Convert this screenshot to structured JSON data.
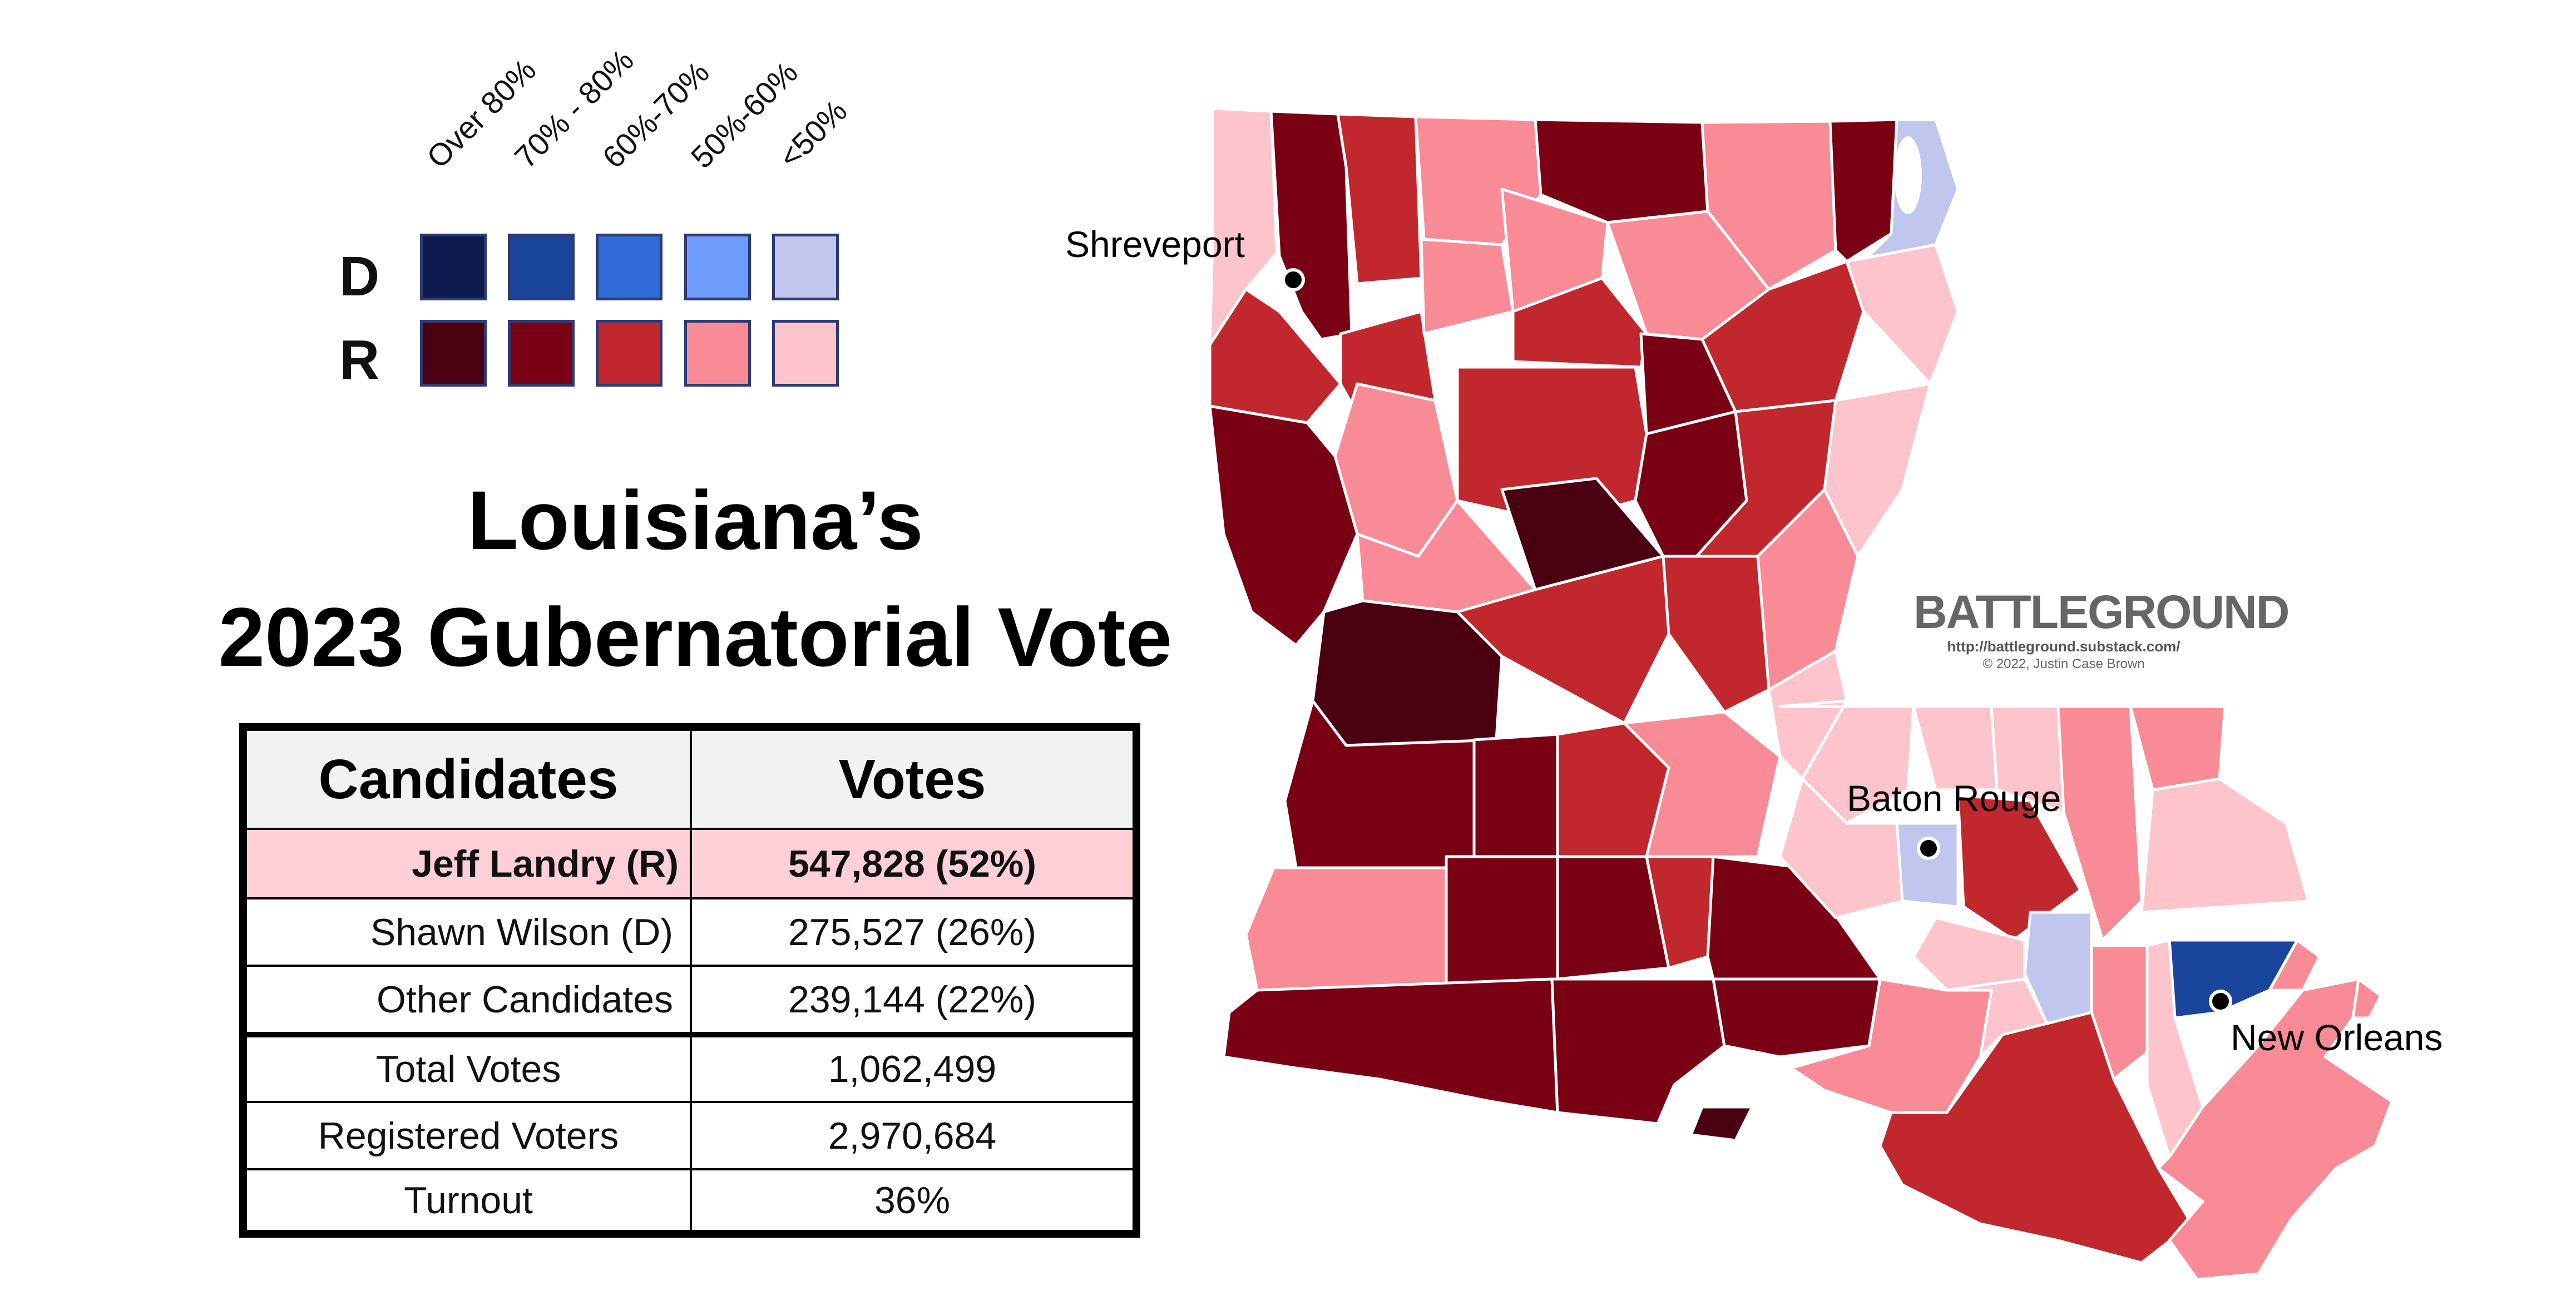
{
  "legend": {
    "headers": [
      "Over 80%",
      "70% - 80%",
      "60%-70%",
      "50%-60%",
      "<50%"
    ],
    "rows": [
      {
        "party": "D",
        "colors": [
          "#0c1a4e",
          "#1a459c",
          "#2f6ad6",
          "#6e9cfc",
          "#c0c6ee"
        ]
      },
      {
        "party": "R",
        "colors": [
          "#4a0010",
          "#7a0014",
          "#c0282e",
          "#f88b96",
          "#fdc4cc"
        ]
      }
    ]
  },
  "title": {
    "line1": "Louisiana’s",
    "line2": "2023 Gubernatorial Vote"
  },
  "results_table": {
    "headers": [
      "Candidates",
      "Votes"
    ],
    "rows": [
      {
        "label": "Jeff Landry (R)",
        "value": "547,828 (52%)"
      },
      {
        "label": "Shawn Wilson (D)",
        "value": "275,527 (26%)"
      },
      {
        "label": "Other Candidates",
        "value": "239,144 (22%)"
      },
      {
        "label": "Total Votes",
        "value": "1,062,499"
      },
      {
        "label": "Registered Voters",
        "value": "2,970,684"
      },
      {
        "label": "Turnout",
        "value": "36%"
      }
    ],
    "highlight_color": "#fdd0d8"
  },
  "map": {
    "cities": [
      {
        "name": "Shreveport"
      },
      {
        "name": "Baton Rouge"
      },
      {
        "name": "New Orleans"
      }
    ]
  },
  "branding": {
    "name": "BATTLEGROUND",
    "url": "http://battleground.substack.com/",
    "copyright": "© 2022, Justin Case Brown"
  }
}
